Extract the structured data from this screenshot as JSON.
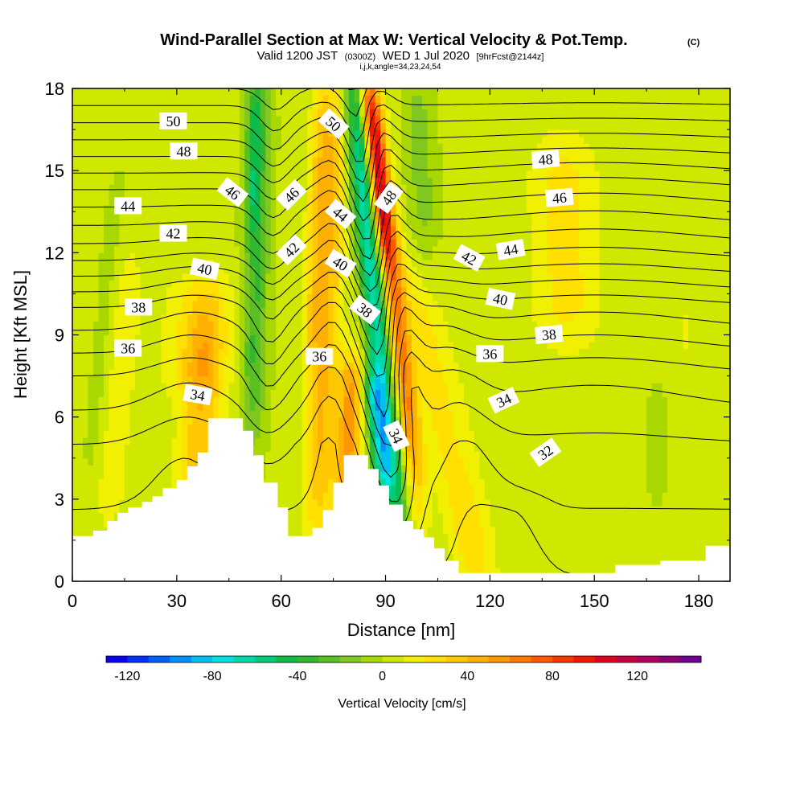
{
  "title": {
    "main": "Wind-Parallel Section at Max W: Vertical Velocity & Pot.Temp.",
    "main_suffix": "(C)",
    "valid_prefix": "Valid 1200 JST",
    "valid_zulu": "(0300Z)",
    "valid_date": "WED 1 Jul 2020",
    "valid_fcst": "[9hrFcst@2144z]",
    "indices": "i,j,k,angle=34,23,24,54"
  },
  "chart_data": {
    "type": "heatmap",
    "xlabel": "Distance [nm]",
    "ylabel": "Height [Kft MSL]",
    "xlim": [
      0,
      189
    ],
    "ylim": [
      0,
      18
    ],
    "xticks": [
      0,
      30,
      60,
      90,
      120,
      150,
      180
    ],
    "yticks": [
      0,
      3,
      6,
      9,
      12,
      15,
      18
    ],
    "colorbar": {
      "label": "Vertical Velocity [cm/s]",
      "vmin": -130,
      "vmax": 150,
      "step": 10,
      "tick_values": [
        -120,
        -80,
        -40,
        0,
        40,
        80,
        120
      ],
      "tick_labels": [
        "-120",
        "-80",
        "-40",
        "0",
        "40",
        "80",
        "120"
      ],
      "colors": [
        "#0a00f0",
        "#0030f8",
        "#0060f8",
        "#0090f8",
        "#00c0f0",
        "#00e0e0",
        "#00d8a8",
        "#00cc78",
        "#10bc48",
        "#30b830",
        "#58c020",
        "#80c820",
        "#a8d800",
        "#d0e800",
        "#f0f000",
        "#ffe000",
        "#ffc800",
        "#ffb000",
        "#ff9800",
        "#ff7800",
        "#ff5800",
        "#f83800",
        "#f01800",
        "#e00020",
        "#c80040",
        "#b00060",
        "#900070",
        "#700090"
      ]
    },
    "terrain_profile": [
      [
        0,
        1.65
      ],
      [
        6,
        1.65
      ],
      [
        6,
        1.85
      ],
      [
        10,
        1.85
      ],
      [
        10,
        2.2
      ],
      [
        13,
        2.2
      ],
      [
        13,
        2.5
      ],
      [
        16,
        2.5
      ],
      [
        16,
        2.7
      ],
      [
        20,
        2.7
      ],
      [
        20,
        2.9
      ],
      [
        23,
        2.9
      ],
      [
        23,
        3.1
      ],
      [
        26,
        3.1
      ],
      [
        26,
        3.4
      ],
      [
        30,
        3.4
      ],
      [
        30,
        3.7
      ],
      [
        33,
        3.7
      ],
      [
        33,
        4.2
      ],
      [
        36,
        4.2
      ],
      [
        36,
        4.7
      ],
      [
        39,
        4.7
      ],
      [
        39,
        5.95
      ],
      [
        49,
        5.95
      ],
      [
        49,
        5.5
      ],
      [
        52,
        5.5
      ],
      [
        52,
        4.6
      ],
      [
        55,
        4.6
      ],
      [
        55,
        3.6
      ],
      [
        59,
        3.6
      ],
      [
        59,
        2.7
      ],
      [
        62,
        2.7
      ],
      [
        62,
        1.65
      ],
      [
        69,
        1.65
      ],
      [
        69,
        1.95
      ],
      [
        72,
        1.95
      ],
      [
        72,
        2.6
      ],
      [
        75,
        2.6
      ],
      [
        75,
        3.6
      ],
      [
        78,
        3.6
      ],
      [
        78,
        4.6
      ],
      [
        85,
        4.6
      ],
      [
        85,
        4.1
      ],
      [
        88,
        4.1
      ],
      [
        88,
        3.5
      ],
      [
        91,
        3.5
      ],
      [
        91,
        2.8
      ],
      [
        95,
        2.8
      ],
      [
        95,
        2.2
      ],
      [
        98,
        2.2
      ],
      [
        98,
        1.9
      ],
      [
        101,
        1.9
      ],
      [
        101,
        1.6
      ],
      [
        104,
        1.6
      ],
      [
        104,
        1.2
      ],
      [
        107,
        1.2
      ],
      [
        107,
        0.75
      ],
      [
        111,
        0.75
      ],
      [
        111,
        0.3
      ],
      [
        156,
        0.3
      ],
      [
        156,
        0.6
      ],
      [
        169,
        0.6
      ],
      [
        169,
        0.75
      ],
      [
        182,
        0.75
      ],
      [
        182,
        1.3
      ],
      [
        189,
        1.3
      ]
    ],
    "w_field": {
      "background": 2,
      "features": [
        {
          "x0": 34,
          "slope": 0.5,
          "y_lo": 1,
          "y_hi": 10,
          "sigma_x": 6,
          "amp": 36
        },
        {
          "x0": 30,
          "slope": 0.5,
          "y_lo": 7,
          "y_hi": 11,
          "sigma_x": 10,
          "amp": 16
        },
        {
          "x0": 9,
          "slope": 0.6,
          "y_lo": 2,
          "y_hi": 12,
          "sigma_x": 5,
          "amp": 14
        },
        {
          "x0": 51,
          "slope": 0.15,
          "y_lo": 6,
          "y_hi": 18,
          "sigma_x": 3.5,
          "amp": -34
        },
        {
          "x0": 49,
          "slope": 0.2,
          "y_lo": 13,
          "y_hi": 18,
          "sigma_x": 2,
          "amp": -24
        },
        {
          "x0": 70,
          "slope": 0.3,
          "y_lo": 2,
          "y_hi": 18,
          "sigma_x": 4.5,
          "amp": 38
        },
        {
          "x0": 78,
          "slope": 0.3,
          "y_lo": 3,
          "y_hi": 8,
          "sigma_x": 3.5,
          "amp": 50
        },
        {
          "x0": 66,
          "slope": 0.3,
          "y_lo": 8,
          "y_hi": 18,
          "sigma_x": 3,
          "amp": 18
        },
        {
          "x0": 95,
          "slope": -0.8,
          "y_lo": 2.5,
          "y_hi": 18,
          "sigma_x": 3.5,
          "amp": -70
        },
        {
          "x0": 92,
          "slope": -0.8,
          "y_lo": 3.5,
          "y_hi": 7.5,
          "sigma_x": 2.8,
          "amp": -50
        },
        {
          "x0": 102,
          "slope": -0.9,
          "y_lo": 4,
          "y_hi": 18,
          "sigma_x": 3.2,
          "amp": 60
        },
        {
          "x0": 101,
          "slope": -0.9,
          "y_lo": 12,
          "y_hi": 18,
          "sigma_x": 2.5,
          "amp": 55
        },
        {
          "x0": 117,
          "slope": -1.6,
          "y_lo": 0,
          "y_hi": 11,
          "sigma_x": 6,
          "amp": 30
        },
        {
          "x0": 117,
          "slope": -1.4,
          "y_lo": 3,
          "y_hi": 13,
          "sigma_x": 4,
          "amp": -10
        },
        {
          "x0": 144,
          "slope": -0.2,
          "y_lo": 9,
          "y_hi": 16,
          "sigma_x": 10,
          "amp": 22
        },
        {
          "x0": 150,
          "slope": 0,
          "y_lo": 2,
          "y_hi": 8,
          "sigma_x": 25,
          "amp": 4
        },
        {
          "x0": 168,
          "slope": 0,
          "y_lo": 3,
          "y_hi": 7,
          "sigma_x": 3,
          "amp": -10
        },
        {
          "x0": 176,
          "slope": 0,
          "y_lo": 7,
          "y_hi": 18,
          "sigma_x": 3,
          "amp": 8
        },
        {
          "x0": 108,
          "slope": -0.5,
          "y_lo": 13,
          "y_hi": 18,
          "sigma_x": 4,
          "amp": -16
        },
        {
          "x0": 3,
          "slope": 0.7,
          "y_lo": 4,
          "y_hi": 14,
          "sigma_x": 3,
          "amp": -8
        }
      ]
    },
    "theta_levels": [
      31,
      32,
      33,
      34,
      35,
      36,
      37,
      38,
      39,
      40,
      41,
      42,
      43,
      44,
      45,
      46,
      47,
      48,
      49,
      50,
      51,
      52,
      53,
      54,
      55
    ],
    "theta_base_profile": [
      [
        0,
        30.9
      ],
      [
        5,
        33.0
      ],
      [
        7.5,
        35.0
      ],
      [
        10,
        38.0
      ],
      [
        12,
        41.5
      ],
      [
        14,
        44.5
      ],
      [
        16,
        47.8
      ],
      [
        18,
        51.0
      ]
    ],
    "theta_features": [
      {
        "x0": 30,
        "slope": 0.5,
        "y_lo": 3,
        "y_hi": 12,
        "sigma_x": 14,
        "amp": -0.8
      },
      {
        "x0": 55,
        "slope": 0.2,
        "y_lo": 6,
        "y_hi": 18,
        "sigma_x": 6,
        "amp": 1.6
      },
      {
        "x0": 72,
        "slope": 0.3,
        "y_lo": 4,
        "y_hi": 18,
        "sigma_x": 6,
        "amp": -1.4
      },
      {
        "x0": 95,
        "slope": -0.8,
        "y_lo": 3,
        "y_hi": 18,
        "sigma_x": 6,
        "amp": 3.4
      },
      {
        "x0": 103,
        "slope": -0.9,
        "y_lo": 6,
        "y_hi": 18,
        "sigma_x": 5,
        "amp": -2.2
      },
      {
        "x0": 120,
        "slope": -1.5,
        "y_lo": 0,
        "y_hi": 11,
        "sigma_x": 10,
        "amp": -1.0
      },
      {
        "x0": 128,
        "slope": 0,
        "y_lo": 0,
        "y_hi": 3,
        "sigma_x": 8,
        "amp": -0.7
      },
      {
        "x0": 150,
        "slope": 0,
        "y_lo": 6,
        "y_hi": 16,
        "sigma_x": 40,
        "amp": -0.8
      }
    ],
    "contour_labels": [
      {
        "text": "50",
        "x": 29,
        "y": 16.8,
        "angle": 0
      },
      {
        "text": "48",
        "x": 32,
        "y": 15.7,
        "angle": 0
      },
      {
        "text": "46",
        "x": 46,
        "y": 14.2,
        "angle": 38
      },
      {
        "text": "44",
        "x": 16,
        "y": 13.7,
        "angle": 0
      },
      {
        "text": "42",
        "x": 29,
        "y": 12.7,
        "angle": 0
      },
      {
        "text": "40",
        "x": 38,
        "y": 11.4,
        "angle": 12
      },
      {
        "text": "38",
        "x": 19,
        "y": 10.0,
        "angle": 0
      },
      {
        "text": "36",
        "x": 16,
        "y": 8.5,
        "angle": 0
      },
      {
        "text": "34",
        "x": 36,
        "y": 6.8,
        "angle": 10
      },
      {
        "text": "46",
        "x": 63,
        "y": 14.1,
        "angle": -45
      },
      {
        "text": "42",
        "x": 63,
        "y": 12.1,
        "angle": -45
      },
      {
        "text": "36",
        "x": 71,
        "y": 8.2,
        "angle": 0
      },
      {
        "text": "50",
        "x": 75,
        "y": 16.7,
        "angle": 42
      },
      {
        "text": "44",
        "x": 77,
        "y": 13.4,
        "angle": 40
      },
      {
        "text": "40",
        "x": 77,
        "y": 11.6,
        "angle": 32
      },
      {
        "text": "38",
        "x": 84,
        "y": 9.9,
        "angle": 38
      },
      {
        "text": "48",
        "x": 91,
        "y": 14.0,
        "angle": -55
      },
      {
        "text": "34",
        "x": 93,
        "y": 5.3,
        "angle": 65
      },
      {
        "text": "42",
        "x": 114,
        "y": 11.8,
        "angle": 28
      },
      {
        "text": "44",
        "x": 126,
        "y": 12.1,
        "angle": -10
      },
      {
        "text": "40",
        "x": 123,
        "y": 10.3,
        "angle": 12
      },
      {
        "text": "36",
        "x": 120,
        "y": 8.3,
        "angle": 0
      },
      {
        "text": "34",
        "x": 124,
        "y": 6.6,
        "angle": -25
      },
      {
        "text": "32",
        "x": 136,
        "y": 4.7,
        "angle": -35
      },
      {
        "text": "48",
        "x": 136,
        "y": 15.4,
        "angle": -5
      },
      {
        "text": "46",
        "x": 140,
        "y": 14.0,
        "angle": -5
      },
      {
        "text": "38",
        "x": 137,
        "y": 9.0,
        "angle": -5
      }
    ]
  }
}
